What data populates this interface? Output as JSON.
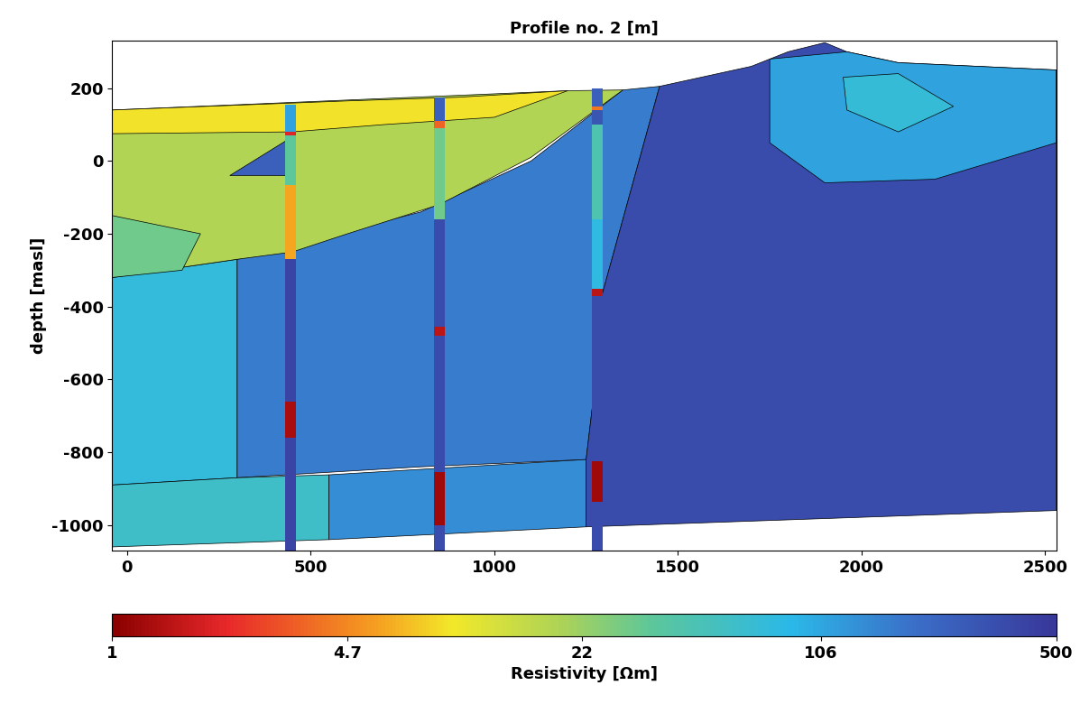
{
  "chart_data": {
    "type": "resistivity_section",
    "title": "Profile no. 2 [m]",
    "y_label": "depth [masl]",
    "xlim": [
      -40,
      2530
    ],
    "ylim": [
      -1070,
      330
    ],
    "xticks": [
      0,
      500,
      1000,
      1500,
      2000,
      2500
    ],
    "yticks": [
      -1000,
      -800,
      -600,
      -400,
      -200,
      0,
      200
    ],
    "colorbar": {
      "label": "Resistivity [Ωm]",
      "range": [
        1,
        500
      ],
      "ticks": [
        1,
        4.7,
        22,
        106,
        500
      ]
    },
    "regions": [
      {
        "resistivity": 75,
        "polygon": [
          [
            -40,
            -320
          ],
          [
            300,
            -270
          ],
          [
            300,
            -870
          ],
          [
            -40,
            -890
          ]
        ]
      },
      {
        "resistivity": 170,
        "polygon": [
          [
            300,
            -270
          ],
          [
            800,
            -140
          ],
          [
            1100,
            0
          ],
          [
            1350,
            195
          ],
          [
            1450,
            205
          ],
          [
            1290,
            -380
          ],
          [
            1270,
            -650
          ],
          [
            1250,
            -820
          ],
          [
            800,
            -840
          ],
          [
            300,
            -870
          ]
        ]
      },
      {
        "resistivity": 60,
        "polygon": [
          [
            -40,
            -890
          ],
          [
            300,
            -870
          ],
          [
            550,
            -862
          ],
          [
            550,
            -1040
          ],
          [
            -40,
            -1060
          ]
        ]
      },
      {
        "resistivity": 140,
        "polygon": [
          [
            550,
            -862
          ],
          [
            1250,
            -820
          ],
          [
            1250,
            -1005
          ],
          [
            550,
            -1040
          ]
        ]
      },
      {
        "resistivity": 350,
        "polygon": [
          [
            1450,
            205
          ],
          [
            1700,
            260
          ],
          [
            1800,
            300
          ],
          [
            1900,
            325
          ],
          [
            1960,
            300
          ],
          [
            2100,
            270
          ],
          [
            2530,
            250
          ],
          [
            2530,
            -960
          ],
          [
            1250,
            -1005
          ],
          [
            1250,
            -820
          ],
          [
            1270,
            -650
          ],
          [
            1290,
            -380
          ]
        ]
      },
      {
        "resistivity": 110,
        "polygon": [
          [
            1750,
            280
          ],
          [
            1960,
            300
          ],
          [
            2100,
            270
          ],
          [
            2530,
            250
          ],
          [
            2530,
            50
          ],
          [
            2200,
            -50
          ],
          [
            1900,
            -60
          ],
          [
            1750,
            50
          ]
        ]
      },
      {
        "resistivity": 70,
        "polygon": [
          [
            1950,
            230
          ],
          [
            2100,
            240
          ],
          [
            2250,
            150
          ],
          [
            2100,
            80
          ],
          [
            1960,
            140
          ]
        ]
      },
      {
        "resistivity": 18,
        "polygon": [
          [
            -40,
            140
          ],
          [
            1200,
            193
          ],
          [
            1350,
            195
          ],
          [
            1100,
            10
          ],
          [
            850,
            -120
          ],
          [
            600,
            -200
          ],
          [
            450,
            -250
          ],
          [
            300,
            -270
          ],
          [
            -40,
            -320
          ]
        ]
      },
      {
        "resistivity": 9,
        "polygon": [
          [
            -40,
            140
          ],
          [
            600,
            165
          ],
          [
            900,
            175
          ],
          [
            1200,
            193
          ],
          [
            1000,
            120
          ],
          [
            700,
            100
          ],
          [
            450,
            80
          ],
          [
            -40,
            75
          ]
        ]
      },
      {
        "resistivity": 30,
        "polygon": [
          [
            -40,
            -150
          ],
          [
            200,
            -200
          ],
          [
            150,
            -300
          ],
          [
            -40,
            -320
          ]
        ]
      },
      {
        "resistivity": 250,
        "polygon": [
          [
            280,
            -40
          ],
          [
            440,
            60
          ],
          [
            450,
            -40
          ]
        ]
      }
    ],
    "boreholes": [
      {
        "x": 445,
        "segments": [
          {
            "top": 155,
            "bottom": 80,
            "resistivity": 110
          },
          {
            "top": 80,
            "bottom": 70,
            "resistivity": 2
          },
          {
            "top": 70,
            "bottom": -65,
            "resistivity": 35
          },
          {
            "top": -65,
            "bottom": -270,
            "resistivity": 6
          },
          {
            "top": -270,
            "bottom": -660,
            "resistivity": 400
          },
          {
            "top": -660,
            "bottom": -760,
            "resistivity": 1.3
          },
          {
            "top": -760,
            "bottom": -1070,
            "resistivity": 400
          }
        ]
      },
      {
        "x": 850,
        "segments": [
          {
            "top": 175,
            "bottom": 110,
            "resistivity": 250
          },
          {
            "top": 110,
            "bottom": 90,
            "resistivity": 3.5
          },
          {
            "top": 90,
            "bottom": -160,
            "resistivity": 30
          },
          {
            "top": -160,
            "bottom": -455,
            "resistivity": 350
          },
          {
            "top": -455,
            "bottom": -480,
            "resistivity": 1.5
          },
          {
            "top": -480,
            "bottom": -855,
            "resistivity": 350
          },
          {
            "top": -855,
            "bottom": -1000,
            "resistivity": 1.2
          },
          {
            "top": -1000,
            "bottom": -1070,
            "resistivity": 350
          }
        ]
      },
      {
        "x": 1280,
        "segments": [
          {
            "top": 200,
            "bottom": 150,
            "resistivity": 250
          },
          {
            "top": 150,
            "bottom": 140,
            "resistivity": 4
          },
          {
            "top": 140,
            "bottom": 100,
            "resistivity": 300
          },
          {
            "top": 100,
            "bottom": -160,
            "resistivity": 45
          },
          {
            "top": -160,
            "bottom": -350,
            "resistivity": 80
          },
          {
            "top": -350,
            "bottom": -370,
            "resistivity": 1.5
          },
          {
            "top": -370,
            "bottom": -825,
            "resistivity": 350
          },
          {
            "top": -825,
            "bottom": -935,
            "resistivity": 1.2
          },
          {
            "top": -935,
            "bottom": -1070,
            "resistivity": 350
          }
        ]
      }
    ]
  }
}
